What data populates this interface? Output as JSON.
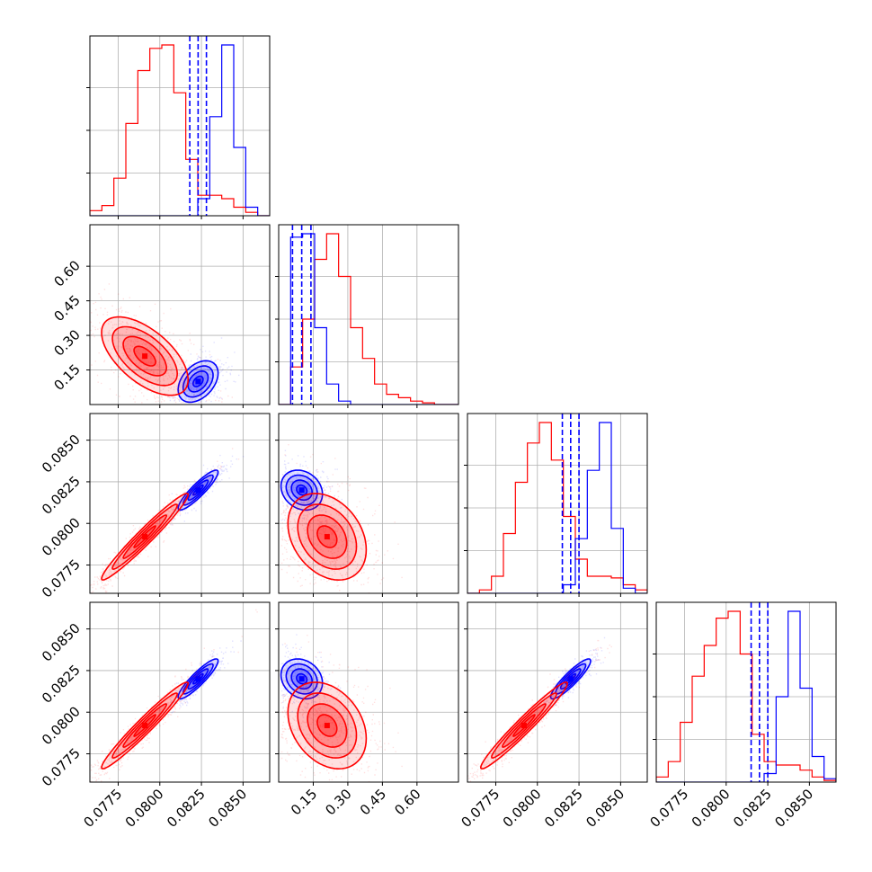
{
  "colors": {
    "red": "#ff0000",
    "blue": "#0000ff",
    "grid": "#b0b0b0"
  },
  "chart_data": {
    "type": "corner",
    "grid": true,
    "legend": "none",
    "title": "",
    "parameters": [
      {
        "range": [
          0.0758,
          0.0866
        ],
        "ticks": [
          0.0775,
          0.08,
          0.0825,
          0.085
        ],
        "tick_labels": [
          "0.0775",
          "0.0800",
          "0.0825",
          "0.0850"
        ]
      },
      {
        "range": [
          0.0,
          0.78
        ],
        "ticks": [
          0.15,
          0.3,
          0.45,
          0.6
        ],
        "tick_labels": [
          "0.15",
          "0.30",
          "0.45",
          "0.60"
        ]
      },
      {
        "range": [
          0.0758,
          0.0866
        ],
        "ticks": [
          0.0775,
          0.08,
          0.0825,
          0.085
        ],
        "tick_labels": [
          "0.0775",
          "0.0800",
          "0.0825",
          "0.0850"
        ]
      },
      {
        "range": [
          0.0758,
          0.0866
        ],
        "ticks": [
          0.0775,
          0.08,
          0.0825,
          0.085
        ],
        "tick_labels": [
          "0.0775",
          "0.0800",
          "0.0825",
          "0.0850"
        ]
      }
    ],
    "series": [
      {
        "color": "#ff0000",
        "mean": [
          0.0791,
          0.21,
          0.0792,
          0.0792
        ],
        "sd": [
          0.0013,
          0.085,
          0.0013,
          0.0013
        ],
        "hist": [
          [
            0.03,
            0.06,
            0.22,
            0.54,
            0.85,
            0.98,
            1.0,
            0.72,
            0.33,
            0.12,
            0.12,
            0.1,
            0.05,
            0.02,
            0.0
          ],
          [
            0.0,
            0.22,
            0.5,
            0.85,
            1.0,
            0.75,
            0.45,
            0.27,
            0.12,
            0.06,
            0.04,
            0.02,
            0.01,
            0.0,
            0.0
          ],
          [
            0.0,
            0.02,
            0.1,
            0.35,
            0.65,
            0.88,
            1.0,
            0.78,
            0.45,
            0.2,
            0.1,
            0.1,
            0.09,
            0.05,
            0.02
          ],
          [
            0.03,
            0.12,
            0.35,
            0.62,
            0.8,
            0.96,
            1.0,
            0.75,
            0.28,
            0.12,
            0.1,
            0.1,
            0.07,
            0.03,
            0.01
          ]
        ]
      },
      {
        "color": "#0000ff",
        "mean": [
          0.0823,
          0.1,
          0.082,
          0.082
        ],
        "sd": [
          0.0006,
          0.045,
          0.0006,
          0.0006
        ],
        "quantile_lines": [
          [
            0.0818,
            0.0823,
            0.0828
          ],
          [
            0.06,
            0.1,
            0.14
          ],
          [
            0.0815,
            0.082,
            0.0825
          ],
          [
            0.0815,
            0.082,
            0.0825
          ]
        ],
        "hist": [
          [
            0.0,
            0.0,
            0.0,
            0.0,
            0.0,
            0.0,
            0.0,
            0.0,
            0.0,
            0.1,
            0.58,
            1.0,
            0.4,
            0.05,
            0.0
          ],
          [
            0.0,
            0.98,
            1.0,
            0.45,
            0.12,
            0.02,
            0.0,
            0.0,
            0.0,
            0.0,
            0.0,
            0.0,
            0.0,
            0.0,
            0.0
          ],
          [
            0.0,
            0.0,
            0.0,
            0.0,
            0.0,
            0.0,
            0.0,
            0.0,
            0.05,
            0.32,
            0.72,
            1.0,
            0.38,
            0.03,
            0.0
          ],
          [
            0.0,
            0.0,
            0.0,
            0.0,
            0.0,
            0.0,
            0.0,
            0.0,
            0.0,
            0.05,
            0.5,
            1.0,
            0.55,
            0.15,
            0.02
          ]
        ]
      }
    ],
    "correlation": {
      "1-0": {
        "red": -0.6,
        "blue": 0.4
      },
      "2-0": {
        "red": 0.97,
        "blue": 0.9
      },
      "2-1": {
        "red": -0.3,
        "blue": -0.2
      },
      "3-0": {
        "red": 0.97,
        "blue": 0.9
      },
      "3-1": {
        "red": -0.3,
        "blue": -0.2
      },
      "3-2": {
        "red": 0.97,
        "blue": 0.9
      }
    }
  }
}
